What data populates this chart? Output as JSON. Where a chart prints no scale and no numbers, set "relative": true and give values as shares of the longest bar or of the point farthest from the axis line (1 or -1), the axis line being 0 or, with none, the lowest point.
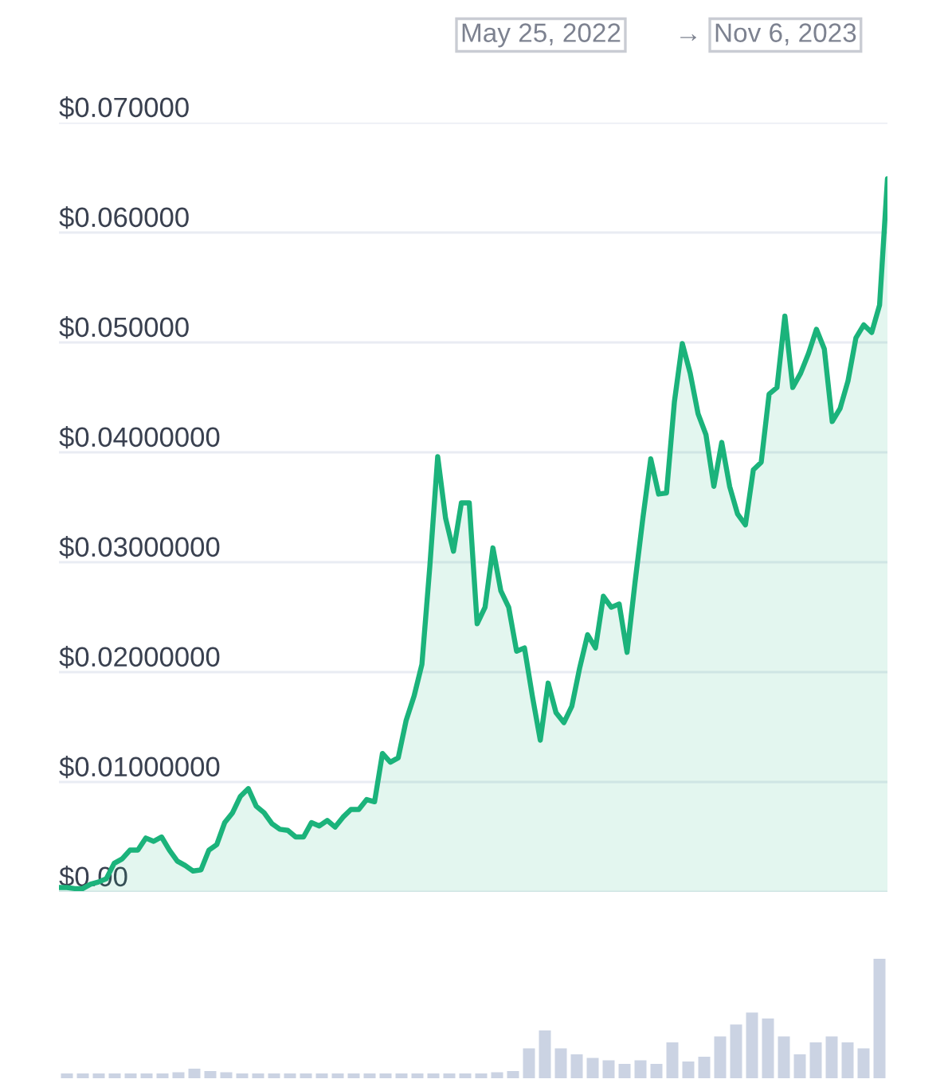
{
  "chart_data": [
    {
      "type": "area",
      "annotations": [
        "May 25, 2022",
        "→",
        "Nov 6, 2023"
      ],
      "categories": [
        null,
        null,
        null,
        null,
        null,
        null,
        null,
        null,
        null,
        null,
        null,
        null,
        null,
        null,
        null,
        null,
        null,
        null,
        null,
        null,
        null,
        null,
        null,
        null,
        null,
        null,
        null,
        null,
        null,
        null,
        null,
        null,
        null,
        null,
        null,
        null,
        null,
        null,
        null,
        null,
        null,
        null,
        null,
        null,
        null,
        null,
        null,
        null,
        null,
        null,
        null,
        null,
        null,
        null,
        null,
        null,
        null,
        null,
        null,
        null,
        null,
        null,
        null,
        null,
        null,
        null,
        null,
        null,
        null,
        null,
        null,
        null,
        null,
        null,
        null,
        null,
        null,
        null,
        null,
        null,
        null,
        null,
        null,
        null,
        null,
        null,
        null,
        null,
        null,
        null,
        null,
        null,
        null,
        null,
        null,
        null,
        null,
        null,
        null,
        null,
        null,
        null,
        null,
        null,
        null,
        null
      ],
      "series": [
        {
          "color": "#1bb37b",
          "values": [
            0.0004,
            0.0004,
            0.0003,
            0.0003,
            0.0007,
            0.0009,
            0.0012,
            0.0026,
            0.003,
            0.0038,
            0.0038,
            0.0049,
            0.0046,
            0.005,
            0.0038,
            0.0028,
            0.0024,
            0.0019,
            0.002,
            0.0038,
            0.0043,
            0.0063,
            0.0072,
            0.0087,
            0.0094,
            0.0078,
            0.0072,
            0.0062,
            0.0057,
            0.0056,
            0.005,
            0.005,
            0.0063,
            0.006,
            0.0065,
            0.0059,
            0.0068,
            0.0075,
            0.0075,
            0.0084,
            0.0082,
            0.0126,
            0.0118,
            0.0122,
            0.0156,
            0.0178,
            0.0207,
            0.0296,
            0.0396,
            0.034,
            0.031,
            0.0354,
            0.0354,
            0.0244,
            0.0259,
            0.0313,
            0.0274,
            0.0259,
            0.0219,
            0.0222,
            0.0178,
            0.0138,
            0.019,
            0.0163,
            0.0154,
            0.0169,
            0.0204,
            0.0234,
            0.0222,
            0.0269,
            0.0259,
            0.0262,
            0.0218,
            0.0281,
            0.034,
            0.0394,
            0.0362,
            0.0363,
            0.0446,
            0.0499,
            0.0472,
            0.0435,
            0.0416,
            0.0369,
            0.0409,
            0.0369,
            0.0344,
            0.0334,
            0.0384,
            0.0391,
            0.0453,
            0.0459,
            0.0524,
            0.0459,
            0.0472,
            0.049,
            0.0512,
            0.0494,
            0.0428,
            0.044,
            0.0465,
            0.0504,
            0.0516,
            0.0509,
            0.0534,
            0.0649
          ]
        }
      ],
      "ylim": [
        0,
        0.07
      ],
      "yticks": [
        {
          "value": 0,
          "label": "$0.00"
        },
        {
          "value": 0.01,
          "label": "$0.01000000"
        },
        {
          "value": 0.02,
          "label": "$0.02000000"
        },
        {
          "value": 0.03,
          "label": "$0.03000000"
        },
        {
          "value": 0.04,
          "label": "$0.04000000"
        },
        {
          "value": 0.05,
          "label": "$0.050000"
        },
        {
          "value": 0.06,
          "label": "$0.060000"
        },
        {
          "value": 0.07,
          "label": "$0.070000"
        }
      ],
      "grid": "y",
      "tick_labels": "y"
    },
    {
      "type": "bar",
      "relative": true,
      "tick_labels": false,
      "categories": [
        null,
        null,
        null,
        null,
        null,
        null,
        null,
        null,
        null,
        null,
        null,
        null,
        null,
        null,
        null,
        null,
        null,
        null,
        null,
        null,
        null,
        null,
        null,
        null,
        null,
        null,
        null,
        null,
        null,
        null,
        null,
        null,
        null,
        null,
        null,
        null,
        null,
        null,
        null,
        null,
        null,
        null,
        null,
        null,
        null,
        null,
        null,
        null,
        null,
        null,
        null,
        null
      ],
      "series": [
        {
          "color": "#cbd3e3",
          "values": [
            0.04,
            0.04,
            0.04,
            0.04,
            0.04,
            0.04,
            0.04,
            0.05,
            0.08,
            0.06,
            0.05,
            0.04,
            0.04,
            0.04,
            0.04,
            0.04,
            0.04,
            0.04,
            0.04,
            0.04,
            0.04,
            0.04,
            0.04,
            0.04,
            0.04,
            0.04,
            0.04,
            0.05,
            0.06,
            0.25,
            0.4,
            0.25,
            0.2,
            0.17,
            0.15,
            0.12,
            0.15,
            0.12,
            0.3,
            0.14,
            0.18,
            0.35,
            0.45,
            0.55,
            0.5,
            0.35,
            0.2,
            0.3,
            0.35,
            0.3,
            0.25,
            1.0
          ]
        }
      ]
    }
  ]
}
